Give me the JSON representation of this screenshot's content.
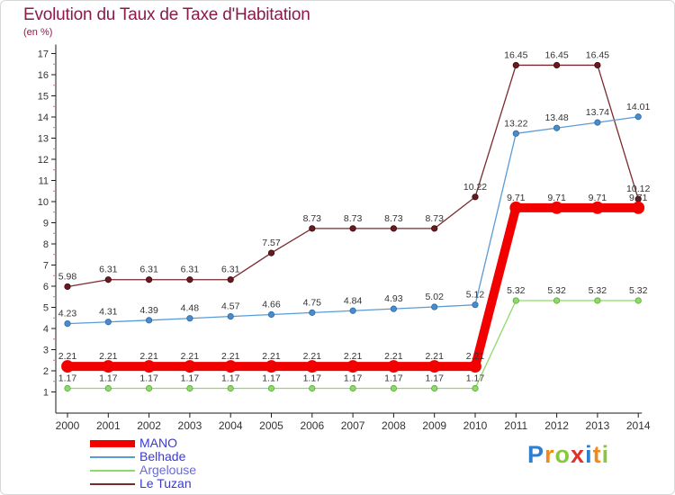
{
  "title": "Evolution du Taux de Taxe d'Habitation",
  "subtitle": "(en %)",
  "logo": {
    "letters": [
      {
        "ch": "P",
        "color": "#2e7fd0"
      },
      {
        "ch": "r",
        "color": "#f08a1c"
      },
      {
        "ch": "o",
        "color": "#8cc63f"
      },
      {
        "ch": "x",
        "color": "#e0312b"
      },
      {
        "ch": "i",
        "color": "#2e7fd0"
      },
      {
        "ch": "t",
        "color": "#f08a1c"
      },
      {
        "ch": "i",
        "color": "#8cc63f"
      }
    ]
  },
  "chart_data": {
    "type": "line",
    "title": "Evolution du Taux de Taxe d'Habitation",
    "ylabel": "(en %)",
    "x": [
      "2000",
      "2001",
      "2002",
      "2003",
      "2004",
      "2005",
      "2006",
      "2007",
      "2008",
      "2009",
      "2010",
      "2011",
      "2012",
      "2013",
      "2014"
    ],
    "ylim": [
      1,
      17
    ],
    "yticks": [
      1,
      2,
      3,
      4,
      5,
      6,
      7,
      8,
      9,
      10,
      11,
      12,
      13,
      14,
      15,
      16,
      17
    ],
    "grid": false,
    "legend_position": "bottom-left",
    "series": [
      {
        "name": "MANO",
        "color": "#f20000",
        "values": [
          2.21,
          2.21,
          2.21,
          2.21,
          2.21,
          2.21,
          2.21,
          2.21,
          2.21,
          2.21,
          2.21,
          9.71,
          9.71,
          9.71,
          9.71
        ],
        "labels": [
          "2.21",
          "2.21",
          "2.21",
          "2.21",
          "2.21",
          "2.21",
          "2.21",
          "2.21",
          "2.21",
          "2.21",
          "2.21",
          "9.71",
          "9.71",
          "9.71",
          "9.71"
        ]
      },
      {
        "name": "Belhade",
        "color": "#5b9bd5",
        "values": [
          4.23,
          4.31,
          4.39,
          4.48,
          4.57,
          4.66,
          4.75,
          4.84,
          4.93,
          5.02,
          5.12,
          13.22,
          13.48,
          13.74,
          14.01
        ],
        "labels": [
          "4.23",
          "4.31",
          "4.39",
          "4.48",
          "4.57",
          "4.66",
          "4.75",
          "4.84",
          "4.93",
          "5.02",
          "5.12",
          "13.22",
          "13.48",
          "13.74",
          "14.01"
        ]
      },
      {
        "name": "Argelouse",
        "color": "#8fd96a",
        "values": [
          1.17,
          1.17,
          1.17,
          1.17,
          1.17,
          1.17,
          1.17,
          1.17,
          1.17,
          1.17,
          1.17,
          5.32,
          5.32,
          5.32,
          5.32
        ],
        "labels": [
          "1.17",
          "1.17",
          "1.17",
          "1.17",
          "1.17",
          "1.17",
          "1.17",
          "1.17",
          "1.17",
          "1.17",
          "1.17",
          "5.32",
          "5.32",
          "5.32",
          "5.32"
        ]
      },
      {
        "name": "Le Tuzan",
        "color": "#7a2a2e",
        "values": [
          5.98,
          6.31,
          6.31,
          6.31,
          6.31,
          7.57,
          8.73,
          8.73,
          8.73,
          8.73,
          10.22,
          16.45,
          16.45,
          16.45,
          10.12
        ],
        "labels": [
          "5.98",
          "6.31",
          "6.31",
          "6.31",
          "6.31",
          "7.57",
          "8.73",
          "8.73",
          "8.73",
          "8.73",
          "10.22",
          "16.45",
          "16.45",
          "16.45",
          "10.12"
        ]
      }
    ]
  }
}
